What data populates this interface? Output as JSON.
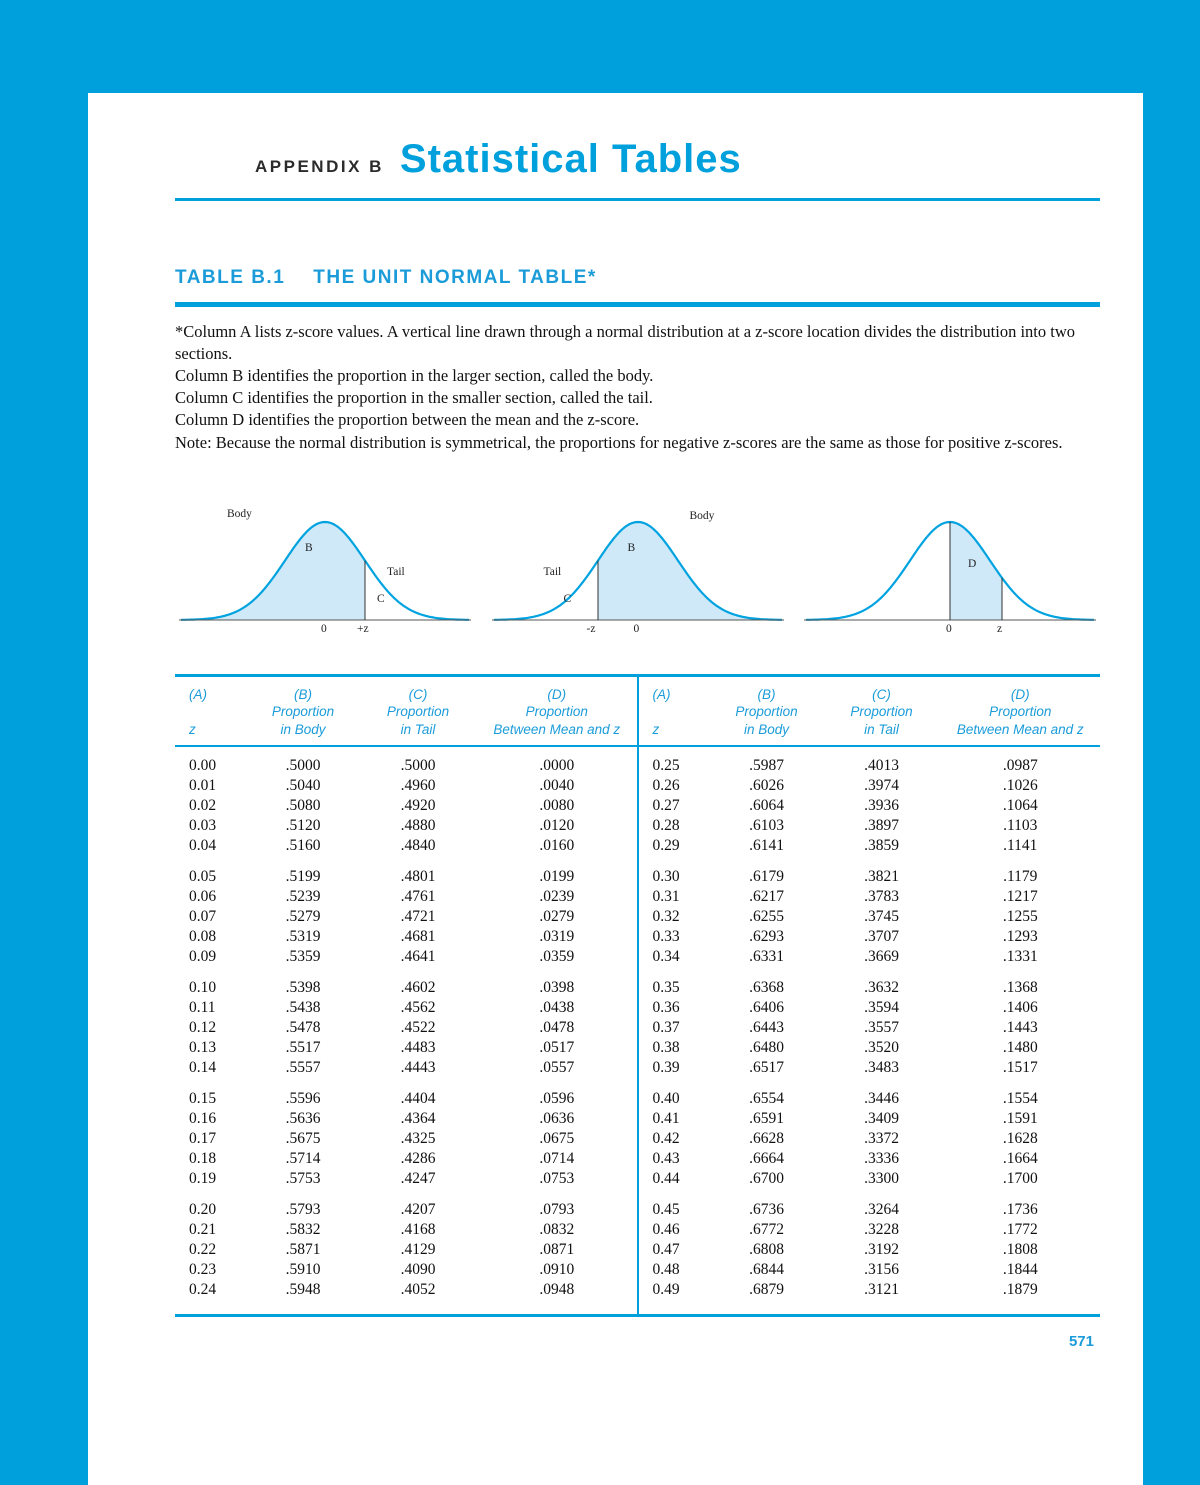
{
  "header": {
    "appendix_label": "APPENDIX B",
    "title": "Statistical Tables"
  },
  "table_heading": {
    "label": "TABLE B.1",
    "title": "THE UNIT NORMAL TABLE*"
  },
  "notes": [
    "*Column A lists z-score values. A vertical line drawn through a normal distribution at a z-score location divides the distribution into two sections.",
    "Column B identifies the proportion in the larger section, called the body.",
    "Column C identifies the proportion in the smaller section, called the tail.",
    "Column D identifies the proportion between the mean and the z-score.",
    "Note: Because the normal distribution is symmetrical, the proportions for negative z-scores are the same as those for positive z-scores."
  ],
  "diagrams": [
    {
      "body": "Body",
      "b": "B",
      "tail": "Tail",
      "c": "C",
      "axis_left": "0",
      "axis_right": "+z"
    },
    {
      "tail": "Tail",
      "c": "C",
      "b": "B",
      "body": "Body",
      "axis_left": "-z",
      "axis_right": "0"
    },
    {
      "d": "D",
      "axis_left": "0",
      "axis_right": "z"
    }
  ],
  "table": {
    "columns": {
      "a": "(A)",
      "b": "(B)",
      "c": "(C)",
      "d": "(D)",
      "proportion": "Proportion",
      "z": "z",
      "in_body": "in Body",
      "in_tail": "in Tail",
      "between_mean": "Between Mean and z"
    },
    "left_rows": [
      [
        "0.00",
        ".5000",
        ".5000",
        ".0000"
      ],
      [
        "0.01",
        ".5040",
        ".4960",
        ".0040"
      ],
      [
        "0.02",
        ".5080",
        ".4920",
        ".0080"
      ],
      [
        "0.03",
        ".5120",
        ".4880",
        ".0120"
      ],
      [
        "0.04",
        ".5160",
        ".4840",
        ".0160"
      ],
      [
        "0.05",
        ".5199",
        ".4801",
        ".0199"
      ],
      [
        "0.06",
        ".5239",
        ".4761",
        ".0239"
      ],
      [
        "0.07",
        ".5279",
        ".4721",
        ".0279"
      ],
      [
        "0.08",
        ".5319",
        ".4681",
        ".0319"
      ],
      [
        "0.09",
        ".5359",
        ".4641",
        ".0359"
      ],
      [
        "0.10",
        ".5398",
        ".4602",
        ".0398"
      ],
      [
        "0.11",
        ".5438",
        ".4562",
        ".0438"
      ],
      [
        "0.12",
        ".5478",
        ".4522",
        ".0478"
      ],
      [
        "0.13",
        ".5517",
        ".4483",
        ".0517"
      ],
      [
        "0.14",
        ".5557",
        ".4443",
        ".0557"
      ],
      [
        "0.15",
        ".5596",
        ".4404",
        ".0596"
      ],
      [
        "0.16",
        ".5636",
        ".4364",
        ".0636"
      ],
      [
        "0.17",
        ".5675",
        ".4325",
        ".0675"
      ],
      [
        "0.18",
        ".5714",
        ".4286",
        ".0714"
      ],
      [
        "0.19",
        ".5753",
        ".4247",
        ".0753"
      ],
      [
        "0.20",
        ".5793",
        ".4207",
        ".0793"
      ],
      [
        "0.21",
        ".5832",
        ".4168",
        ".0832"
      ],
      [
        "0.22",
        ".5871",
        ".4129",
        ".0871"
      ],
      [
        "0.23",
        ".5910",
        ".4090",
        ".0910"
      ],
      [
        "0.24",
        ".5948",
        ".4052",
        ".0948"
      ]
    ],
    "right_rows": [
      [
        "0.25",
        ".5987",
        ".4013",
        ".0987"
      ],
      [
        "0.26",
        ".6026",
        ".3974",
        ".1026"
      ],
      [
        "0.27",
        ".6064",
        ".3936",
        ".1064"
      ],
      [
        "0.28",
        ".6103",
        ".3897",
        ".1103"
      ],
      [
        "0.29",
        ".6141",
        ".3859",
        ".1141"
      ],
      [
        "0.30",
        ".6179",
        ".3821",
        ".1179"
      ],
      [
        "0.31",
        ".6217",
        ".3783",
        ".1217"
      ],
      [
        "0.32",
        ".6255",
        ".3745",
        ".1255"
      ],
      [
        "0.33",
        ".6293",
        ".3707",
        ".1293"
      ],
      [
        "0.34",
        ".6331",
        ".3669",
        ".1331"
      ],
      [
        "0.35",
        ".6368",
        ".3632",
        ".1368"
      ],
      [
        "0.36",
        ".6406",
        ".3594",
        ".1406"
      ],
      [
        "0.37",
        ".6443",
        ".3557",
        ".1443"
      ],
      [
        "0.38",
        ".6480",
        ".3520",
        ".1480"
      ],
      [
        "0.39",
        ".6517",
        ".3483",
        ".1517"
      ],
      [
        "0.40",
        ".6554",
        ".3446",
        ".1554"
      ],
      [
        "0.41",
        ".6591",
        ".3409",
        ".1591"
      ],
      [
        "0.42",
        ".6628",
        ".3372",
        ".1628"
      ],
      [
        "0.43",
        ".6664",
        ".3336",
        ".1664"
      ],
      [
        "0.44",
        ".6700",
        ".3300",
        ".1700"
      ],
      [
        "0.45",
        ".6736",
        ".3264",
        ".1736"
      ],
      [
        "0.46",
        ".6772",
        ".3228",
        ".1772"
      ],
      [
        "0.47",
        ".6808",
        ".3192",
        ".1808"
      ],
      [
        "0.48",
        ".6844",
        ".3156",
        ".1844"
      ],
      [
        "0.49",
        ".6879",
        ".3121",
        ".1879"
      ]
    ]
  },
  "page": {
    "number": "571"
  }
}
